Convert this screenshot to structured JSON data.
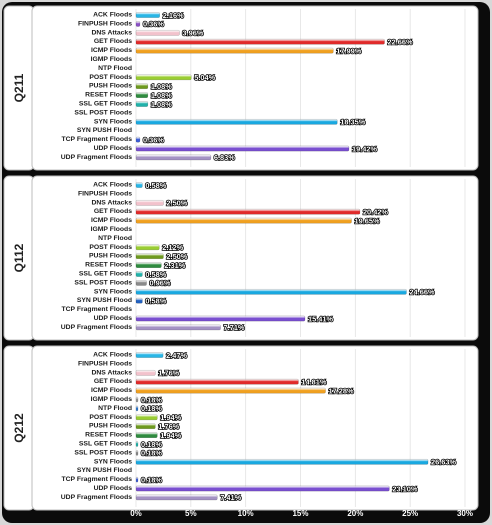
{
  "chart_data": {
    "type": "bar",
    "orientation": "horizontal",
    "categories": [
      "ACK Floods",
      "FINPUSH Floods",
      "DNS Attacks",
      "GET Floods",
      "ICMP Floods",
      "IGMP Floods",
      "NTP Flood",
      "POST Floods",
      "PUSH Floods",
      "RESET Floods",
      "SSL GET Floods",
      "SSL POST Floods",
      "SYN Floods",
      "SYN PUSH Flood",
      "TCP Fragment Floods",
      "UDP Floods",
      "UDP Fragment Floods"
    ],
    "colors": {
      "ACK Floods": "#29b6e6",
      "FINPUSH Floods": "#8a4fc7",
      "DNS Attacks": "#f2c2cc",
      "GET Floods": "#e02a2a",
      "ICMP Floods": "#f0a020",
      "IGMP Floods": "#999999",
      "NTP Flood": "#2f7ad0",
      "POST Floods": "#9acd32",
      "PUSH Floods": "#6e9a1e",
      "RESET Floods": "#2e8b3e",
      "SSL GET Floods": "#20b2aa",
      "SSL POST Floods": "#8a8a8a",
      "SYN Floods": "#19a8e0",
      "SYN PUSH Flood": "#2060c0",
      "TCP Fragment Floods": "#3a5cd8",
      "UDP Floods": "#7a4fd0",
      "UDP Fragment Floods": "#a493c4"
    },
    "xlim": [
      0,
      30
    ],
    "x_ticks": [
      "0%",
      "5%",
      "10%",
      "15%",
      "20%",
      "25%",
      "30%"
    ],
    "grid": true,
    "panels": [
      {
        "name": "Q211",
        "values": [
          2.16,
          0.36,
          3.96,
          22.66,
          17.99,
          0,
          0,
          5.04,
          1.08,
          1.08,
          1.08,
          0,
          18.35,
          0,
          0.36,
          19.42,
          6.83
        ],
        "labels": [
          "2.16%",
          "0.36%",
          "3.96%",
          "22.66%",
          "17.99%",
          "",
          "",
          "5.04%",
          "1.08%",
          "1.08%",
          "1.08%",
          "",
          "18.35%",
          "",
          "0.36%",
          "19.42%",
          "6.83%"
        ]
      },
      {
        "name": "Q112",
        "values": [
          0.58,
          0,
          2.5,
          20.42,
          19.65,
          0,
          0,
          2.12,
          2.5,
          2.31,
          0.58,
          0.96,
          24.66,
          0.58,
          0,
          15.41,
          7.71
        ],
        "labels": [
          "0.58%",
          "",
          "2.50%",
          "20.42%",
          "19.65%",
          "",
          "",
          "2.12%",
          "2.50%",
          "2.31%",
          "0.58%",
          "0.96%",
          "24.66%",
          "0.58%",
          "",
          "15.41%",
          "7.71%"
        ]
      },
      {
        "name": "Q212",
        "values": [
          2.47,
          0,
          1.76,
          14.81,
          17.28,
          0.18,
          0.18,
          1.94,
          1.76,
          1.94,
          0.18,
          0.18,
          26.63,
          0,
          0.18,
          23.1,
          7.41
        ],
        "labels": [
          "2.47%",
          "",
          "1.76%",
          "14.81%",
          "17.28%",
          "0.18%",
          "0.18%",
          "1.94%",
          "1.76%",
          "1.94%",
          "0.18%",
          "0.18%",
          "26.63%",
          "",
          "0.18%",
          "23.10%",
          "7.41%"
        ]
      }
    ]
  }
}
